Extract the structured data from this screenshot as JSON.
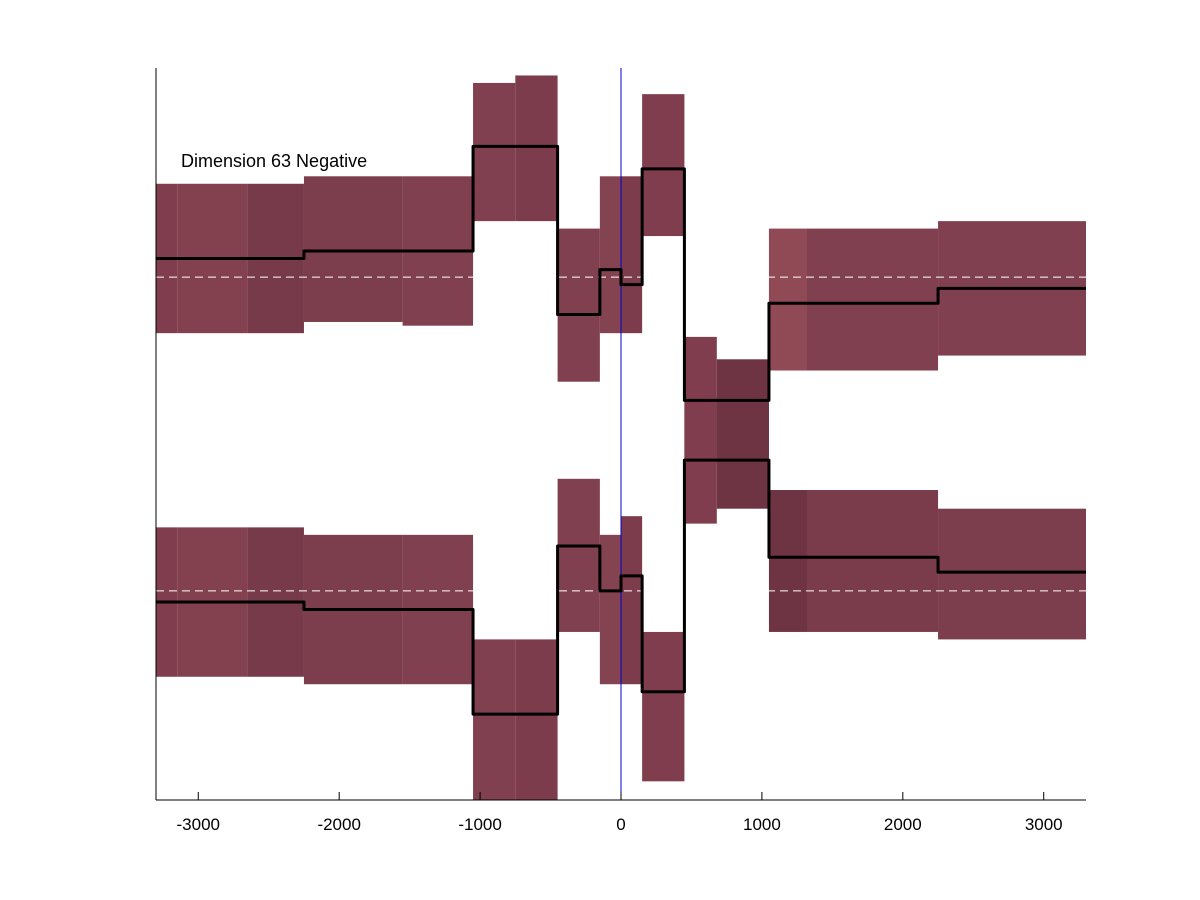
{
  "chart_data": {
    "type": "line",
    "title": "",
    "xlabel": "",
    "ylabel": "",
    "annotation": "Dimension 63 Negative",
    "xlim": [
      -3300,
      3300
    ],
    "ylim": [
      -0.98,
      0.98
    ],
    "xticks": [
      -3000,
      -2000,
      -1000,
      0,
      1000,
      2000,
      3000
    ],
    "xtick_labels": [
      "-3000",
      "-2000",
      "-1000",
      "0",
      "1000",
      "2000",
      "3000"
    ],
    "grid": false,
    "vline_x": 0,
    "vline_color": "#0000cc",
    "band_color": "#7f3d4d",
    "line_color": "#000000",
    "ref_line_color": "#ffffff",
    "panels": [
      {
        "name": "",
        "ref_y": 0.42,
        "segments": [
          {
            "x0": -3300,
            "x1": -3150,
            "y": 0.47,
            "lo": 0.27,
            "hi": 0.67,
            "shade": "#7f3d4d"
          },
          {
            "x0": -3150,
            "x1": -2650,
            "y": 0.47,
            "lo": 0.27,
            "hi": 0.67,
            "shade": "#83414f"
          },
          {
            "x0": -2650,
            "x1": -2250,
            "y": 0.47,
            "lo": 0.27,
            "hi": 0.67,
            "shade": "#773a4a"
          },
          {
            "x0": -2250,
            "x1": -1550,
            "y": 0.49,
            "lo": 0.3,
            "hi": 0.69,
            "shade": "#7c3d4c"
          },
          {
            "x0": -1550,
            "x1": -1050,
            "y": 0.49,
            "lo": 0.29,
            "hi": 0.69,
            "shade": "#80404f"
          },
          {
            "x0": -1050,
            "x1": -750,
            "y": 0.77,
            "lo": 0.57,
            "hi": 0.94,
            "shade": "#81404f"
          },
          {
            "x0": -750,
            "x1": -450,
            "y": 0.77,
            "lo": 0.57,
            "hi": 0.96,
            "shade": "#7c3c4c"
          },
          {
            "x0": -450,
            "x1": -150,
            "y": 0.32,
            "lo": 0.14,
            "hi": 0.55,
            "shade": "#80404f"
          },
          {
            "x0": -150,
            "x1": 0,
            "y": 0.44,
            "lo": 0.27,
            "hi": 0.69,
            "shade": "#834350"
          },
          {
            "x0": 0,
            "x1": 150,
            "y": 0.4,
            "lo": 0.27,
            "hi": 0.69,
            "shade": "#7c3c4c"
          },
          {
            "x0": 150,
            "x1": 450,
            "y": 0.71,
            "lo": 0.53,
            "hi": 0.91,
            "shade": "#7f3d4d"
          },
          {
            "x0": 450,
            "x1": 680,
            "y": 0.09,
            "lo": -0.08,
            "hi": 0.26,
            "shade": "#7f3d4d"
          },
          {
            "x0": 680,
            "x1": 1050,
            "y": 0.09,
            "lo": -0.06,
            "hi": 0.2,
            "shade": "#6e3444"
          },
          {
            "x0": 1050,
            "x1": 1320,
            "y": 0.35,
            "lo": 0.17,
            "hi": 0.55,
            "shade": "#8f4a55"
          },
          {
            "x0": 1320,
            "x1": 2250,
            "y": 0.35,
            "lo": 0.17,
            "hi": 0.55,
            "shade": "#80404f"
          },
          {
            "x0": 2250,
            "x1": 3300,
            "y": 0.39,
            "lo": 0.21,
            "hi": 0.57,
            "shade": "#80404f"
          }
        ]
      },
      {
        "name": "",
        "ref_y": -0.42,
        "segments": [
          {
            "x0": -3300,
            "x1": -3150,
            "y": -0.45,
            "lo": -0.65,
            "hi": -0.25,
            "shade": "#7f3d4d"
          },
          {
            "x0": -3150,
            "x1": -2650,
            "y": -0.45,
            "lo": -0.65,
            "hi": -0.25,
            "shade": "#83414f"
          },
          {
            "x0": -2650,
            "x1": -2250,
            "y": -0.45,
            "lo": -0.65,
            "hi": -0.25,
            "shade": "#773a4a"
          },
          {
            "x0": -2250,
            "x1": -1550,
            "y": -0.47,
            "lo": -0.67,
            "hi": -0.27,
            "shade": "#7c3d4c"
          },
          {
            "x0": -1550,
            "x1": -1050,
            "y": -0.47,
            "lo": -0.67,
            "hi": -0.27,
            "shade": "#80404f"
          },
          {
            "x0": -1050,
            "x1": -750,
            "y": -0.75,
            "lo": -0.98,
            "hi": -0.55,
            "shade": "#81404f"
          },
          {
            "x0": -750,
            "x1": -450,
            "y": -0.75,
            "lo": -0.98,
            "hi": -0.55,
            "shade": "#7c3c4c"
          },
          {
            "x0": -450,
            "x1": -150,
            "y": -0.3,
            "lo": -0.53,
            "hi": -0.12,
            "shade": "#80404f"
          },
          {
            "x0": -150,
            "x1": 0,
            "y": -0.42,
            "lo": -0.67,
            "hi": -0.27,
            "shade": "#834350"
          },
          {
            "x0": 0,
            "x1": 150,
            "y": -0.38,
            "lo": -0.67,
            "hi": -0.22,
            "shade": "#7c3c4c"
          },
          {
            "x0": 150,
            "x1": 450,
            "y": -0.69,
            "lo": -0.93,
            "hi": -0.53,
            "shade": "#7f3d4d"
          },
          {
            "x0": 450,
            "x1": 680,
            "y": -0.07,
            "lo": -0.24,
            "hi": 0.1,
            "shade": "#7f3d4d"
          },
          {
            "x0": 680,
            "x1": 1050,
            "y": -0.07,
            "lo": -0.2,
            "hi": 0.1,
            "shade": "#6e3444"
          },
          {
            "x0": 1050,
            "x1": 1320,
            "y": -0.33,
            "lo": -0.53,
            "hi": -0.15,
            "shade": "#6e3444"
          },
          {
            "x0": 1320,
            "x1": 2250,
            "y": -0.33,
            "lo": -0.53,
            "hi": -0.15,
            "shade": "#7a3b4b"
          },
          {
            "x0": 2250,
            "x1": 3300,
            "y": -0.37,
            "lo": -0.55,
            "hi": -0.2,
            "shade": "#7c3d4c"
          }
        ]
      }
    ]
  }
}
